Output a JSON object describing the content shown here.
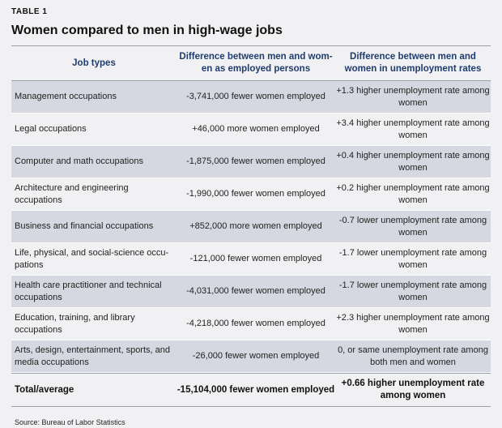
{
  "table_label": "TABLE 1",
  "title": "Women compared to men in high-wage jobs",
  "columns": [
    "Job types",
    "Difference between men and wom-en as employed persons",
    "Difference between men and women in unemployment rates"
  ],
  "rows": [
    [
      "Management occupations",
      "-3,741,000 fewer women employed",
      "+1.3 higher unemployment rate among women"
    ],
    [
      "Legal occupations",
      "+46,000 more women employed",
      "+3.4 higher unemployment rate among women"
    ],
    [
      "Computer and math occupations",
      "-1,875,000 fewer women employed",
      "+0.4 higher unemployment rate among women"
    ],
    [
      "Architecture and engineering occupations",
      "-1,990,000 fewer women employed",
      "+0.2 higher unemployment rate among women"
    ],
    [
      "Business and financial occupations",
      "+852,000 more women employed",
      "-0.7 lower unemployment rate among women"
    ],
    [
      "Life, physical, and social-science occu-pations",
      "-121,000 fewer women employed",
      "-1.7 lower unemployment rate among women"
    ],
    [
      "Health care practitioner and technical occupations",
      "-4,031,000 fewer women employed",
      "-1.7 lower unemployment rate among women"
    ],
    [
      "Education, training, and library occupations",
      "-4,218,000 fewer women employed",
      "+2.3 higher unemployment rate among women"
    ],
    [
      "Arts, design, entertainment, sports, and media occupations",
      "-26,000 fewer women employed",
      "0, or same unemployment rate among both men and women"
    ]
  ],
  "total": [
    "Total/average",
    "-15,104,000 fewer women employed",
    "+0.66 higher unemployment rate among women"
  ],
  "source": "Source: Bureau of Labor Statistics"
}
